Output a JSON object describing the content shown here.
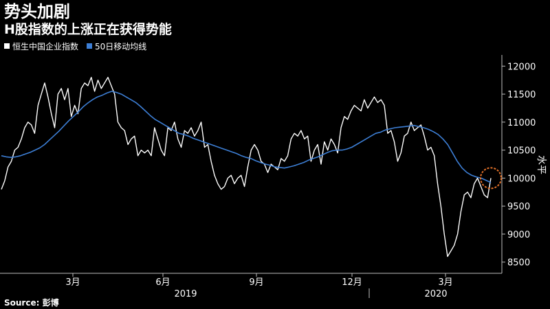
{
  "title": "势头加剧",
  "subtitle": "H股指数的上涨正在获得势能",
  "source": "Source: 彭博",
  "chart_data": {
    "type": "line",
    "ylabel": "水平",
    "ylim": [
      8300,
      12200
    ],
    "y_ticks": [
      12000,
      11500,
      11000,
      10500,
      10000,
      9500,
      9000,
      8500
    ],
    "x_tick_labels": [
      "3月",
      "6月",
      "9月",
      "12月",
      "3月"
    ],
    "year_labels": [
      "2019",
      "2020"
    ],
    "series": [
      {
        "name": "恒生中国企业指数",
        "color": "#ffffff",
        "values": [
          9800,
          9950,
          10200,
          10300,
          10500,
          10550,
          10700,
          10900,
          11000,
          10950,
          10800,
          11300,
          11500,
          11700,
          11450,
          11150,
          10900,
          11500,
          11600,
          11400,
          11600,
          11100,
          11300,
          11150,
          11600,
          11700,
          11650,
          11800,
          11550,
          11750,
          11600,
          11700,
          11800,
          11650,
          11500,
          11000,
          10900,
          10850,
          10600,
          10700,
          10750,
          10400,
          10500,
          10450,
          10500,
          10400,
          10900,
          10700,
          10500,
          10400,
          10900,
          10850,
          11000,
          10700,
          10550,
          10850,
          10800,
          10900,
          10750,
          10850,
          11000,
          10550,
          10600,
          10300,
          10050,
          9900,
          9800,
          9850,
          10000,
          10050,
          9900,
          10000,
          10050,
          9850,
          10200,
          10500,
          10600,
          10500,
          10300,
          10250,
          10100,
          10250,
          10200,
          10150,
          10350,
          10300,
          10400,
          10700,
          10800,
          10750,
          10850,
          10700,
          10750,
          10300,
          10500,
          10600,
          10250,
          10650,
          10500,
          10700,
          10600,
          10450,
          10900,
          11100,
          11050,
          11200,
          11300,
          11250,
          11200,
          11400,
          11250,
          11350,
          11450,
          11350,
          11400,
          11300,
          10800,
          10850,
          10650,
          10300,
          10450,
          10750,
          10800,
          11000,
          10850,
          10900,
          10950,
          10750,
          10500,
          10550,
          10400,
          9900,
          9500,
          9000,
          8600,
          8700,
          8800,
          9000,
          9400,
          9700,
          9750,
          9650,
          9900,
          10000,
          9850,
          9700,
          9650,
          10000
        ]
      },
      {
        "name": "50日移动均线",
        "color": "#3d7fd6",
        "values": [
          10400,
          10380,
          10370,
          10380,
          10400,
          10430,
          10460,
          10500,
          10540,
          10600,
          10680,
          10760,
          10840,
          10930,
          11020,
          11100,
          11180,
          11270,
          11340,
          11400,
          11450,
          11480,
          11520,
          11550,
          11530,
          11500,
          11450,
          11400,
          11350,
          11280,
          11200,
          11120,
          11050,
          11000,
          10950,
          10900,
          10850,
          10800,
          10780,
          10750,
          10710,
          10680,
          10650,
          10620,
          10590,
          10560,
          10530,
          10500,
          10470,
          10440,
          10400,
          10370,
          10350,
          10310,
          10280,
          10250,
          10230,
          10200,
          10190,
          10180,
          10200,
          10220,
          10250,
          10280,
          10320,
          10350,
          10380,
          10420,
          10460,
          10490,
          10500,
          10500,
          10520,
          10550,
          10600,
          10650,
          10700,
          10750,
          10800,
          10820,
          10860,
          10880,
          10900,
          10910,
          10920,
          10930,
          10940,
          10920,
          10900,
          10870,
          10830,
          10780,
          10700,
          10600,
          10450,
          10300,
          10180,
          10100,
          10050,
          10020,
          10000,
          9960,
          9920
        ]
      }
    ]
  }
}
